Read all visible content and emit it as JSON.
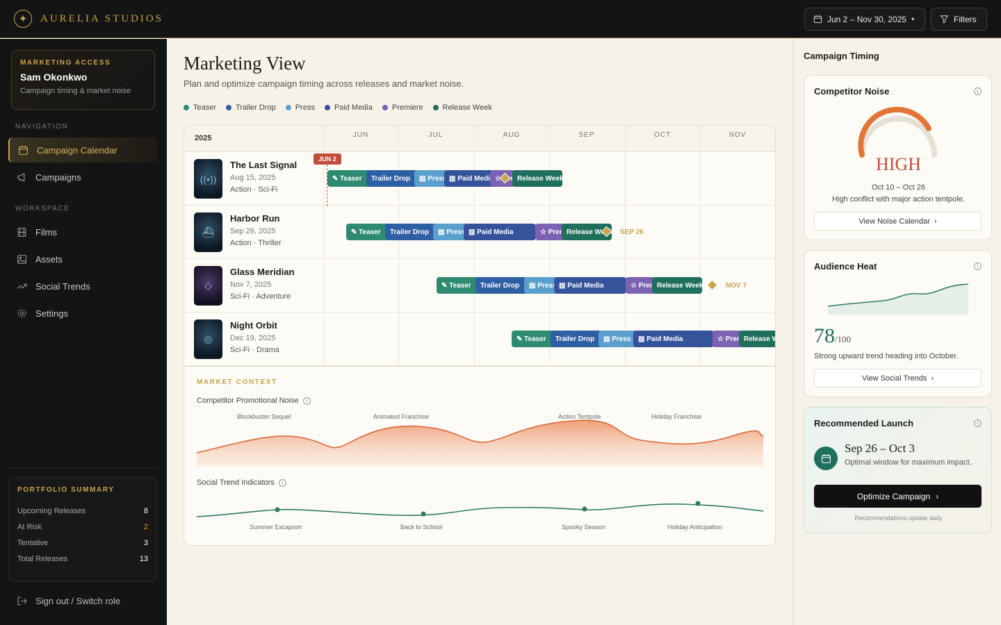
{
  "brand": {
    "name": "AURELIA STUDIOS"
  },
  "topbar": {
    "date_range": "Jun 2 – Nov 30, 2025",
    "filters_label": "Filters"
  },
  "access": {
    "label": "MARKETING ACCESS",
    "name": "Sam Okonkwo",
    "subtitle": "Campaign timing & market noise"
  },
  "nav": {
    "section_navigation": "NAVIGATION",
    "section_workspace": "WORKSPACE",
    "items": [
      {
        "label": "Campaign Calendar",
        "icon": "calendar-icon",
        "active": true
      },
      {
        "label": "Campaigns",
        "icon": "megaphone-icon"
      },
      {
        "label": "Films",
        "icon": "film-icon"
      },
      {
        "label": "Assets",
        "icon": "image-icon"
      },
      {
        "label": "Social Trends",
        "icon": "trend-icon"
      },
      {
        "label": "Settings",
        "icon": "gear-icon"
      }
    ]
  },
  "portfolio": {
    "label": "PORTFOLIO SUMMARY",
    "rows": [
      {
        "label": "Upcoming Releases",
        "value": "8"
      },
      {
        "label": "At Risk",
        "value": "2"
      },
      {
        "label": "Tentative",
        "value": "3"
      },
      {
        "label": "Total Releases",
        "value": "13"
      }
    ]
  },
  "signout": {
    "label": "Sign out / Switch role"
  },
  "page": {
    "title": "Marketing View",
    "subtitle": "Plan and optimize campaign timing across releases and market noise."
  },
  "legend": [
    {
      "label": "Teaser",
      "color": "#2e8b72"
    },
    {
      "label": "Trailer Drop",
      "color": "#2f5fa3"
    },
    {
      "label": "Press",
      "color": "#5ba0cc"
    },
    {
      "label": "Paid Media",
      "color": "#35539b"
    },
    {
      "label": "Premiere",
      "color": "#7c62b3"
    },
    {
      "label": "Release Week",
      "color": "#1f6f5c"
    }
  ],
  "gantt": {
    "year": "2025",
    "months": [
      "JUN",
      "JUL",
      "AUG",
      "SEP",
      "OCT",
      "NOV"
    ],
    "today_label": "JUN 2",
    "films": [
      {
        "title": "The Last Signal",
        "date": "Aug 15, 2025",
        "genre": "Action · Sci-Fi",
        "poster_icon": "signal-icon",
        "release_label": ""
      },
      {
        "title": "Harbor Run",
        "date": "Sep 26, 2025",
        "genre": "Action · Thriller",
        "poster_icon": "ship-icon",
        "release_label": "SEP 26"
      },
      {
        "title": "Glass Meridian",
        "date": "Nov 7, 2025",
        "genre": "Sci-Fi · Adventure",
        "poster_icon": "diamond-icon",
        "release_label": "NOV 7"
      },
      {
        "title": "Night Orbit",
        "date": "Dec 19, 2025",
        "genre": "Sci-Fi · Drama",
        "poster_icon": "orbit-icon",
        "release_label": ""
      }
    ],
    "phase_labels": {
      "teaser": "Teaser",
      "trailer": "Trailer Drop",
      "press": "Press",
      "paid": "Paid Media",
      "premiere": "Premiere",
      "release": "Release Week"
    }
  },
  "market": {
    "label": "MARKET CONTEXT",
    "competitor_label": "Competitor Promotional Noise",
    "competitor_events": [
      "Blockbuster Sequel",
      "Animated Franchise",
      "Action Tentpole",
      "Holiday Franchise"
    ],
    "trend_label": "Social Trend Indicators",
    "trend_events": [
      "Summer Escapism",
      "Back to School",
      "Spooky Season",
      "Holiday Anticipation"
    ]
  },
  "right": {
    "title": "Campaign Timing",
    "noise": {
      "title": "Competitor Noise",
      "level": "HIGH",
      "window": "Oct 10 – Oct 26",
      "desc": "High conflict with major action tentpole.",
      "button": "View Noise Calendar"
    },
    "heat": {
      "title": "Audience Heat",
      "score": "78",
      "score_suffix": "/100",
      "desc": "Strong upward trend heading into October.",
      "button": "View Social Trends"
    },
    "recommend": {
      "title": "Recommended Launch",
      "range": "Sep 26 – Oct 3",
      "desc": "Optimal window for maximum impact.",
      "button": "Optimize Campaign",
      "note": "Recommendations update daily"
    }
  }
}
